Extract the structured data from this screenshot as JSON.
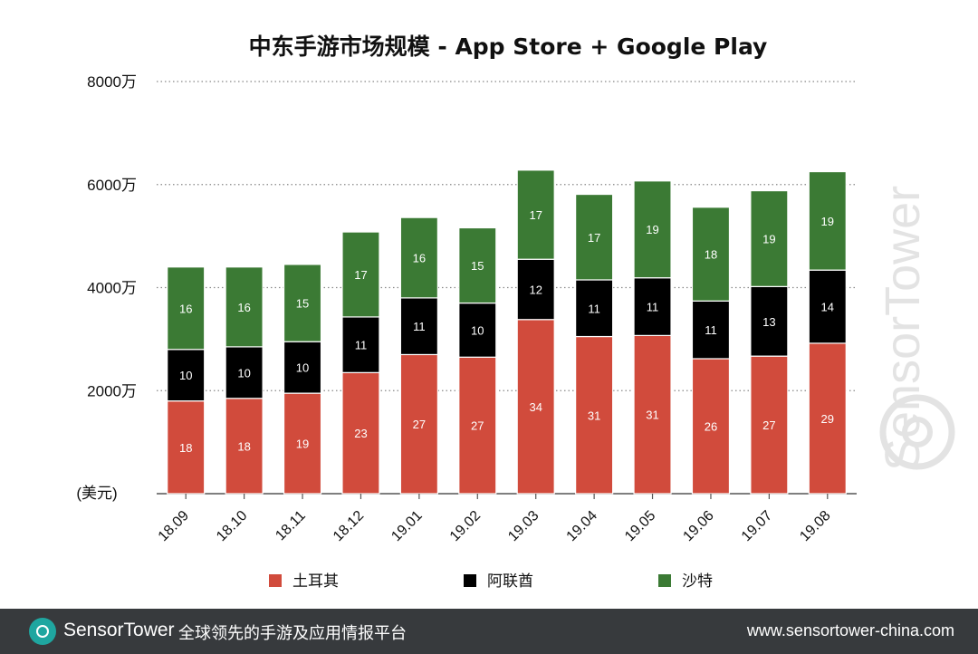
{
  "chart_data": {
    "type": "bar",
    "stacked": true,
    "title": "中东手游市场规模 - App Store + Google Play",
    "ylabel": "(美元)",
    "ylim": [
      0,
      8000
    ],
    "yticks": [
      "2000万",
      "4000万",
      "6000万",
      "8000万"
    ],
    "ytick_values": [
      2000,
      4000,
      6000,
      8000
    ],
    "grid": true,
    "legend_position": "bottom",
    "categories": [
      "18.09",
      "18.10",
      "18.11",
      "18.12",
      "19.01",
      "19.02",
      "19.03",
      "19.04",
      "19.05",
      "19.06",
      "19.07",
      "19.08"
    ],
    "series": [
      {
        "name": "土耳其",
        "color": "#d14b3c",
        "values": [
          1800,
          1850,
          1950,
          2350,
          2700,
          2650,
          3380,
          3050,
          3070,
          2620,
          2670,
          2920
        ],
        "labels": [
          "18",
          "18",
          "19",
          "23",
          "27",
          "27",
          "34",
          "31",
          "31",
          "26",
          "27",
          "29"
        ]
      },
      {
        "name": "阿联酋",
        "color": "#000000",
        "values": [
          1000,
          1000,
          1000,
          1080,
          1100,
          1050,
          1170,
          1100,
          1120,
          1120,
          1350,
          1420
        ],
        "labels": [
          "10",
          "10",
          "10",
          "11",
          "11",
          "10",
          "12",
          "11",
          "11",
          "11",
          "13",
          "14"
        ]
      },
      {
        "name": "沙特",
        "color": "#3b7a34",
        "values": [
          1600,
          1550,
          1500,
          1650,
          1560,
          1460,
          1730,
          1660,
          1880,
          1820,
          1860,
          1910
        ],
        "labels": [
          "16",
          "16",
          "15",
          "17",
          "16",
          "15",
          "17",
          "17",
          "19",
          "18",
          "19",
          "19"
        ]
      }
    ]
  },
  "watermark": "SensorTower",
  "footer": {
    "brand": "SensorTower",
    "slogan": "全球领先的手游及应用情报平台",
    "url": "www.sensortower-china.com"
  }
}
